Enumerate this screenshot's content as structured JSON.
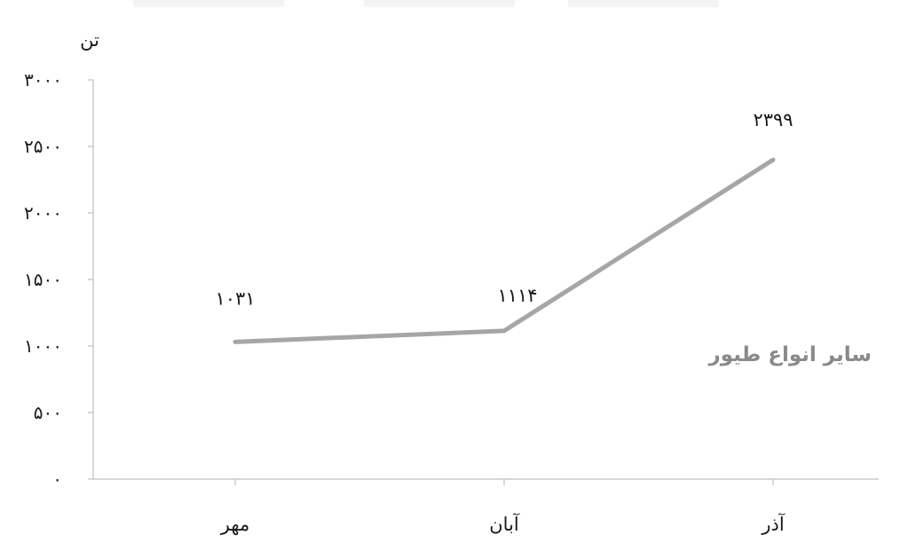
{
  "chart_data": {
    "type": "line",
    "categories": [
      "مهر",
      "آبان",
      "آذر"
    ],
    "series": [
      {
        "name": "سایر انواع طیور",
        "values": [
          1031,
          1114,
          2399
        ]
      }
    ],
    "data_labels": [
      "۱۰۳۱",
      "۱۱۱۴",
      "۲۳۹۹"
    ],
    "ylabel": "تن",
    "ylim": [
      0,
      3000
    ],
    "yticks": [
      0,
      500,
      1000,
      1500,
      2000,
      2500,
      3000
    ],
    "ytick_labels": [
      "۰",
      "۵۰۰",
      "۱۰۰۰",
      "۱۵۰۰",
      "۲۰۰۰",
      "۲۵۰۰",
      "۳۰۰۰"
    ],
    "grid": false,
    "legend": "none",
    "colors": {
      "series": "#a6a6a6",
      "axis": "#bfbfbf",
      "text": "#1a1a1a",
      "series_label": "#8a8a8a"
    }
  }
}
